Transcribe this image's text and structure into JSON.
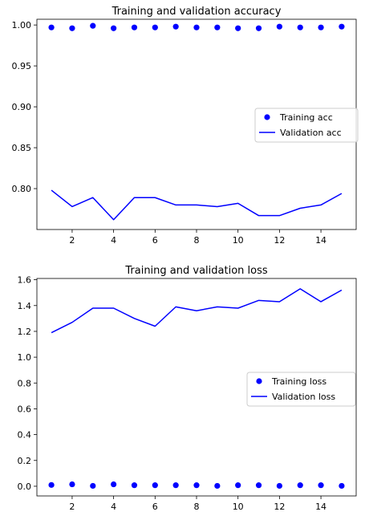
{
  "chart_data": [
    {
      "type": "line",
      "title": "Training and validation accuracy",
      "xlabel": "",
      "ylabel": "",
      "xlim": [
        0.3,
        15.7
      ],
      "ylim": [
        0.75,
        1.007
      ],
      "x_ticks": [
        2,
        4,
        6,
        8,
        10,
        12,
        14
      ],
      "y_ticks": [
        0.8,
        0.85,
        0.9,
        0.95,
        1.0
      ],
      "y_tick_labels": [
        "0.80",
        "0.85",
        "0.90",
        "0.95",
        "1.00"
      ],
      "grid": false,
      "legend_position": "center-right",
      "x": [
        1,
        2,
        3,
        4,
        5,
        6,
        7,
        8,
        9,
        10,
        11,
        12,
        13,
        14,
        15
      ],
      "series": [
        {
          "name": "Training acc",
          "style": "points",
          "color": "#0000ff",
          "values": [
            0.997,
            0.996,
            0.999,
            0.996,
            0.997,
            0.997,
            0.998,
            0.997,
            0.997,
            0.996,
            0.996,
            0.998,
            0.997,
            0.997,
            0.998
          ]
        },
        {
          "name": "Validation acc",
          "style": "line",
          "color": "#0000ff",
          "values": [
            0.798,
            0.778,
            0.789,
            0.762,
            0.789,
            0.789,
            0.78,
            0.78,
            0.778,
            0.782,
            0.767,
            0.767,
            0.776,
            0.78,
            0.794
          ]
        }
      ]
    },
    {
      "type": "line",
      "title": "Training and validation loss",
      "xlabel": "",
      "ylabel": "",
      "xlim": [
        0.3,
        15.7
      ],
      "ylim": [
        -0.075,
        1.61
      ],
      "x_ticks": [
        2,
        4,
        6,
        8,
        10,
        12,
        14
      ],
      "y_ticks": [
        0.0,
        0.2,
        0.4,
        0.6,
        0.8,
        1.0,
        1.2,
        1.4,
        1.6
      ],
      "y_tick_labels": [
        "0.0",
        "0.2",
        "0.4",
        "0.6",
        "0.8",
        "1.0",
        "1.2",
        "1.4",
        "1.6"
      ],
      "grid": false,
      "legend_position": "center-right",
      "x": [
        1,
        2,
        3,
        4,
        5,
        6,
        7,
        8,
        9,
        10,
        11,
        12,
        13,
        14,
        15
      ],
      "series": [
        {
          "name": "Training loss",
          "style": "points",
          "color": "#0000ff",
          "values": [
            0.01,
            0.015,
            0.003,
            0.015,
            0.008,
            0.008,
            0.008,
            0.008,
            0.003,
            0.008,
            0.008,
            0.003,
            0.008,
            0.008,
            0.003
          ]
        },
        {
          "name": "Validation loss",
          "style": "line",
          "color": "#0000ff",
          "values": [
            1.19,
            1.27,
            1.38,
            1.38,
            1.3,
            1.24,
            1.39,
            1.36,
            1.39,
            1.38,
            1.44,
            1.43,
            1.53,
            1.43,
            1.52
          ]
        }
      ]
    }
  ]
}
